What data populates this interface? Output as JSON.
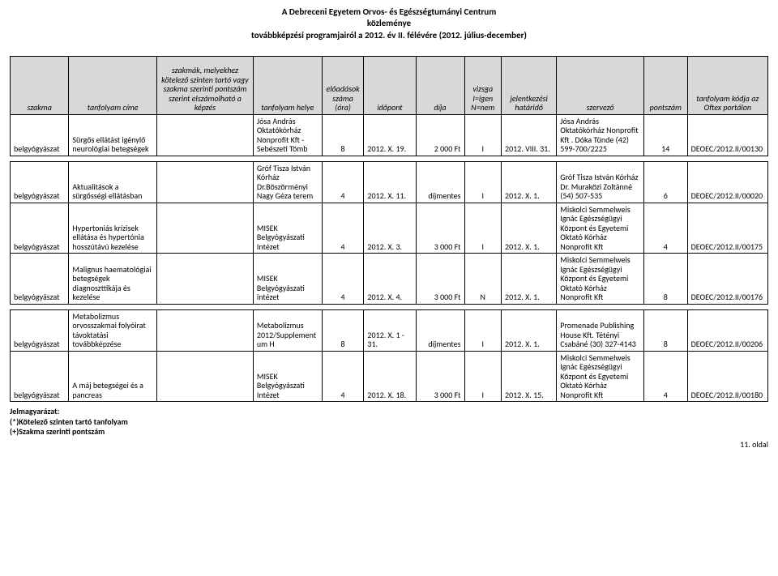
{
  "title": {
    "line1": "A Debreceni Egyetem Orvos- és Egészségtumányi Centrum",
    "line2": "közleménye",
    "line3": "továbbképzési programjairól a 2012. év II. félévére (2012. július-december)"
  },
  "headers": {
    "c1": "szakma",
    "c2": "tanfolyam címe",
    "c3": "szakmák, melyekhez kötelező szinten tartó vagy szakma szerinti pontszám szerint elszámolható a képzés",
    "c4": "tanfolyam helye",
    "c5": "előadások száma (óra)",
    "c6": "időpont",
    "c7": "díja",
    "c8": "vizsga I=igen N=nem",
    "c9": "jelentkezési határidő",
    "c10": "szervező",
    "c11": "pontszám",
    "c12": "tanfolyam kódja az Oftex portálon"
  },
  "rows": [
    {
      "szakma": "belgyógyászat",
      "cim": "Sürgős ellátást igénylő neurológiai betegségek",
      "szakmak": "",
      "hely": "Jósa András Oktatókórház Nonprofit Kft - Sebészeti Tömb",
      "ora": "8",
      "idopont": "2012. X. 19.",
      "dij": "2 000 Ft",
      "vizsga": "I",
      "hatarido": "2012. VIII. 31.",
      "szervezo": "Jósa András Oktatókórház Nonprofit Kft . Dóka Tünde (42) 599-700/2225",
      "pont": "14",
      "kod": "DEOEC/2012.II/00130"
    },
    {
      "szakma": "belgyógyászat",
      "cim": "Aktualitások a sürgősségi ellátásban",
      "szakmak": "",
      "hely": "Gróf Tisza István Kórház Dr.Böszörményi Nagy Géza terem",
      "ora": "4",
      "idopont": "2012. X. 11.",
      "dij": "díjmentes",
      "vizsga": "I",
      "hatarido": "2012. X. 1.",
      "szervezo": "Gróf Tisza István Kórház Dr. Muraközi Zoltánné (54) 507-535",
      "pont": "6",
      "kod": "DEOEC/2012.II/00020"
    },
    {
      "szakma": "belgyógyászat",
      "cim": "Hypertoniás krízisek ellátása és hypertónia hosszútávú kezelése",
      "szakmak": "",
      "hely": "MISEK Belgyógyászati Intézet",
      "ora": "4",
      "idopont": "2012. X. 3.",
      "dij": "3 000 Ft",
      "vizsga": "I",
      "hatarido": "2012. X. 1.",
      "szervezo": "Miskolci Semmelweis Ignác Egészségügyi Központ és Egyetemi Oktató Kórház Nonprofit Kft",
      "pont": "4",
      "kod": "DEOEC/2012.II/00175"
    },
    {
      "szakma": "belgyógyászat",
      "cim": "Malignus haematológiai betegségek diagnoszttikája és kezelése",
      "szakmak": "",
      "hely": "MISEK Belgyógyászati intézet",
      "ora": "4",
      "idopont": "2012. X. 4.",
      "dij": "3 000 Ft",
      "vizsga": "N",
      "hatarido": "2012. X. 1.",
      "szervezo": "Miskolci Semmelweis Ignác Egészségügyi Központ és Egyetemi Oktató Kórház Nonprofit Kft",
      "pont": "8",
      "kod": "DEOEC/2012.II/00176"
    },
    {
      "szakma": "belgyógyászat",
      "cim": "Metabolizmus orvosszakmai folyóirat távoktatási továbbképzése",
      "szakmak": "",
      "hely": "Metabolizmus 2012/Supplementum H",
      "ora": "8",
      "idopont": "2012. X. 1 - 31.",
      "dij": "díjmentes",
      "vizsga": "I",
      "hatarido": "2012. X. 1.",
      "szervezo": "Promenade Publishing House Kft. Tétényi Csabáné (30) 327-4143",
      "pont": "8",
      "kod": "DEOEC/2012.II/00206"
    },
    {
      "szakma": "belgyógyászat",
      "cim": "A máj betegségei és a pancreas",
      "szakmak": "",
      "hely": "MISEK Belgyógyászati Intézet",
      "ora": "4",
      "idopont": "2012. X. 18.",
      "dij": "3 000 Ft",
      "vizsga": "I",
      "hatarido": "2012. X. 15.",
      "szervezo": "Miskolci Semmelweis Ignác Egészségügyi Központ és Egyetemi Oktató Kórház Nonprofit Kft",
      "pont": "4",
      "kod": "DEOEC/2012.II/00180"
    }
  ],
  "legend": {
    "label": "Jelmagyarázat:",
    "l1": "(*)Kötelező szinten tartó tanfolyam",
    "l2": "(+)Szakma szerinti pontszám"
  },
  "page_footer": "11. oldal",
  "row_groups": [
    [
      0
    ],
    [
      1,
      2,
      3
    ],
    [
      4,
      5
    ]
  ]
}
